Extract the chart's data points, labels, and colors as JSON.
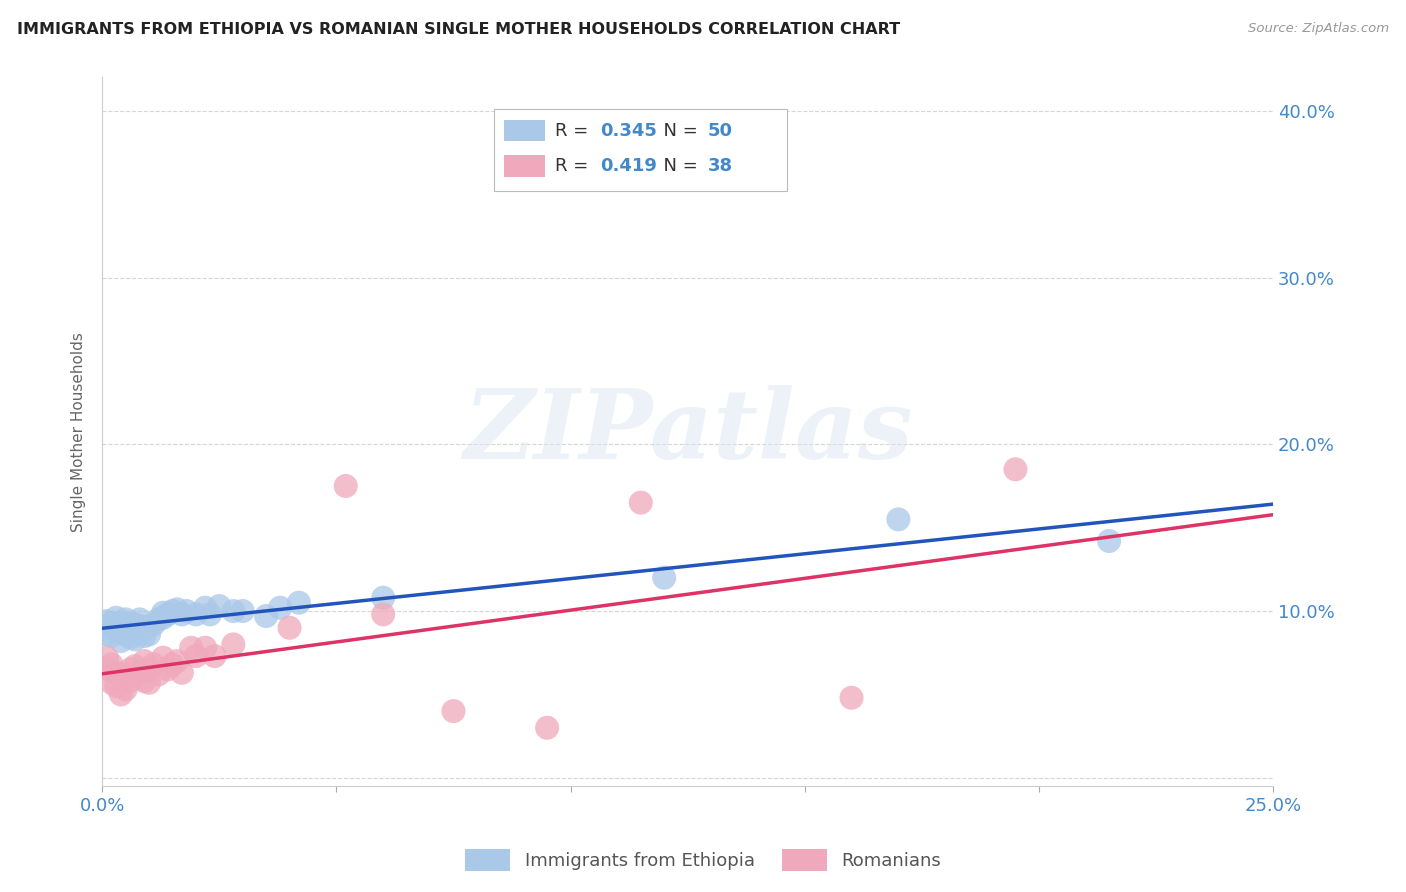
{
  "title": "IMMIGRANTS FROM ETHIOPIA VS ROMANIAN SINGLE MOTHER HOUSEHOLDS CORRELATION CHART",
  "source": "Source: ZipAtlas.com",
  "ylabel": "Single Mother Households",
  "legend_label_1": "Immigrants from Ethiopia",
  "legend_label_2": "Romanians",
  "r1": 0.345,
  "n1": 50,
  "r2": 0.419,
  "n2": 38,
  "color1": "#aac8e8",
  "color2": "#f0a8bc",
  "line_color1": "#2255bb",
  "line_color2": "#dd3366",
  "axis_color": "#4488cc",
  "xlim": [
    0.0,
    0.25
  ],
  "ylim": [
    -0.005,
    0.42
  ],
  "watermark_text": "ZIPatlas",
  "ethiopia_x": [
    0.001,
    0.001,
    0.001,
    0.002,
    0.002,
    0.002,
    0.003,
    0.003,
    0.003,
    0.004,
    0.004,
    0.004,
    0.005,
    0.005,
    0.005,
    0.006,
    0.006,
    0.006,
    0.007,
    0.007,
    0.007,
    0.008,
    0.008,
    0.008,
    0.009,
    0.009,
    0.01,
    0.01,
    0.011,
    0.012,
    0.013,
    0.013,
    0.014,
    0.015,
    0.016,
    0.017,
    0.018,
    0.02,
    0.022,
    0.023,
    0.025,
    0.028,
    0.03,
    0.035,
    0.038,
    0.042,
    0.06,
    0.12,
    0.17,
    0.215
  ],
  "ethiopia_y": [
    0.086,
    0.091,
    0.094,
    0.085,
    0.09,
    0.093,
    0.088,
    0.092,
    0.096,
    0.082,
    0.088,
    0.093,
    0.086,
    0.09,
    0.095,
    0.084,
    0.089,
    0.093,
    0.083,
    0.088,
    0.092,
    0.087,
    0.091,
    0.095,
    0.085,
    0.09,
    0.086,
    0.091,
    0.092,
    0.095,
    0.096,
    0.099,
    0.098,
    0.1,
    0.101,
    0.098,
    0.1,
    0.098,
    0.102,
    0.098,
    0.103,
    0.1,
    0.1,
    0.097,
    0.102,
    0.105,
    0.108,
    0.12,
    0.155,
    0.142
  ],
  "romanian_x": [
    0.001,
    0.001,
    0.002,
    0.002,
    0.003,
    0.003,
    0.004,
    0.004,
    0.005,
    0.005,
    0.006,
    0.006,
    0.007,
    0.008,
    0.009,
    0.009,
    0.01,
    0.01,
    0.011,
    0.012,
    0.013,
    0.014,
    0.015,
    0.016,
    0.017,
    0.019,
    0.02,
    0.022,
    0.024,
    0.028,
    0.04,
    0.052,
    0.06,
    0.075,
    0.095,
    0.115,
    0.16,
    0.195
  ],
  "romanian_y": [
    0.072,
    0.065,
    0.068,
    0.057,
    0.063,
    0.055,
    0.062,
    0.05,
    0.06,
    0.053,
    0.065,
    0.058,
    0.067,
    0.063,
    0.058,
    0.07,
    0.065,
    0.057,
    0.068,
    0.062,
    0.072,
    0.065,
    0.068,
    0.07,
    0.063,
    0.078,
    0.073,
    0.078,
    0.073,
    0.08,
    0.09,
    0.175,
    0.098,
    0.04,
    0.03,
    0.165,
    0.048,
    0.185
  ]
}
